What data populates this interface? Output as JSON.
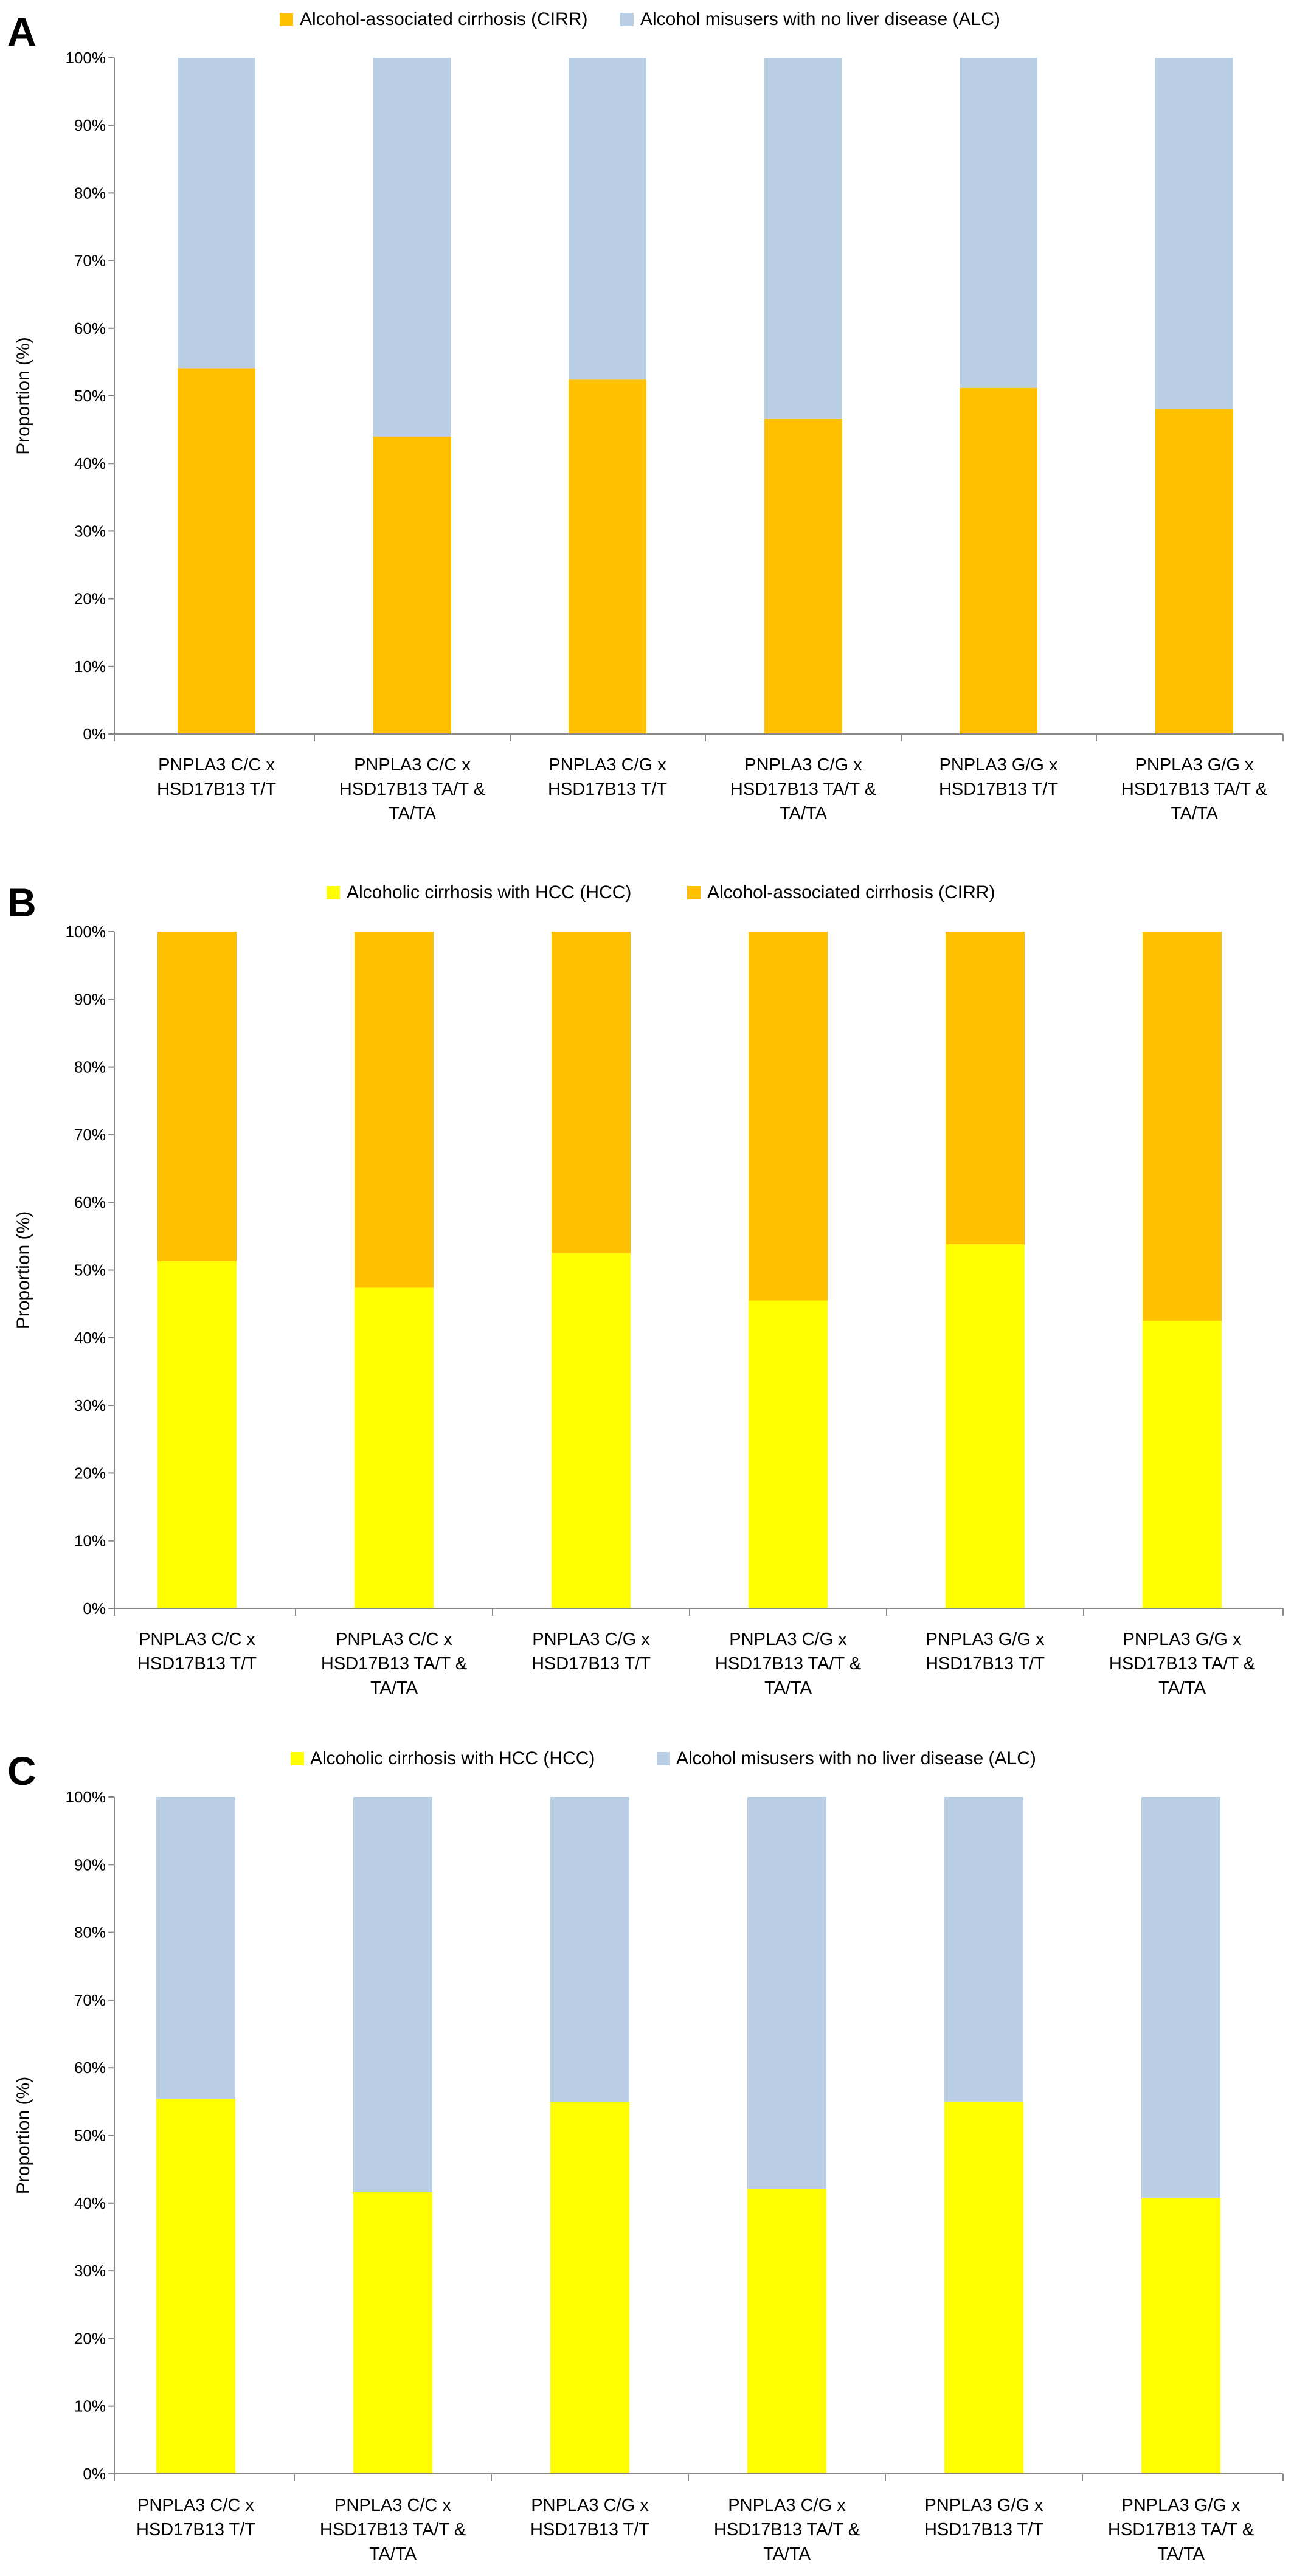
{
  "chart_data": [
    {
      "type": "bar",
      "stacked": true,
      "percent": true,
      "panel_label": "A",
      "ylabel": "Proportion (%)",
      "ylim": [
        0,
        100
      ],
      "yticks": [
        "0%",
        "10%",
        "20%",
        "30%",
        "40%",
        "50%",
        "60%",
        "70%",
        "80%",
        "90%",
        "100%"
      ],
      "legend_position": "top",
      "categories": [
        [
          "PNPLA3 C/C x",
          "HSD17B13 T/T"
        ],
        [
          "PNPLA3 C/C x",
          "HSD17B13 TA/T &",
          "TA/TA"
        ],
        [
          "PNPLA3 C/G x",
          "HSD17B13 T/T"
        ],
        [
          "PNPLA3 C/G x",
          "HSD17B13 TA/T &",
          "TA/TA"
        ],
        [
          "PNPLA3 G/G x",
          "HSD17B13 T/T"
        ],
        [
          "PNPLA3 G/G x",
          "HSD17B13 TA/T &",
          "TA/TA"
        ]
      ],
      "series": [
        {
          "name": "Alcohol-associated cirrhosis (CIRR)",
          "color": "#FFC000",
          "values": [
            54.1,
            44.0,
            52.4,
            46.6,
            51.2,
            48.1
          ]
        },
        {
          "name": "Alcohol misusers with no liver disease (ALC)",
          "color": "#B9CDE5",
          "values": [
            45.9,
            56.0,
            47.6,
            53.4,
            48.8,
            51.9
          ]
        }
      ]
    },
    {
      "type": "bar",
      "stacked": true,
      "percent": true,
      "panel_label": "B",
      "ylabel": "Proportion (%)",
      "ylim": [
        0,
        100
      ],
      "yticks": [
        "0%",
        "10%",
        "20%",
        "30%",
        "40%",
        "50%",
        "60%",
        "70%",
        "80%",
        "90%",
        "100%"
      ],
      "legend_position": "top",
      "categories": [
        [
          "PNPLA3 C/C x",
          "HSD17B13 T/T"
        ],
        [
          "PNPLA3 C/C x",
          "HSD17B13 TA/T &",
          "TA/TA"
        ],
        [
          "PNPLA3 C/G x",
          "HSD17B13 T/T"
        ],
        [
          "PNPLA3 C/G x",
          "HSD17B13 TA/T &",
          "TA/TA"
        ],
        [
          "PNPLA3 G/G x",
          "HSD17B13 T/T"
        ],
        [
          "PNPLA3 G/G x",
          "HSD17B13 TA/T &",
          "TA/TA"
        ]
      ],
      "series": [
        {
          "name": "Alcoholic cirrhosis with HCC (HCC)",
          "color": "#FFFF00",
          "values": [
            51.3,
            47.4,
            52.5,
            45.5,
            53.8,
            42.5
          ]
        },
        {
          "name": "Alcohol-associated cirrhosis (CIRR)",
          "color": "#FFC000",
          "values": [
            48.7,
            52.6,
            47.5,
            54.5,
            46.2,
            57.5
          ]
        }
      ]
    },
    {
      "type": "bar",
      "stacked": true,
      "percent": true,
      "panel_label": "C",
      "ylabel": "Proportion (%)",
      "ylim": [
        0,
        100
      ],
      "yticks": [
        "0%",
        "10%",
        "20%",
        "30%",
        "40%",
        "50%",
        "60%",
        "70%",
        "80%",
        "90%",
        "100%"
      ],
      "legend_position": "top",
      "categories": [
        [
          "PNPLA3 C/C x",
          "HSD17B13 T/T"
        ],
        [
          "PNPLA3 C/C x",
          "HSD17B13 TA/T &",
          "TA/TA"
        ],
        [
          "PNPLA3 C/G x",
          "HSD17B13 T/T"
        ],
        [
          "PNPLA3 C/G x",
          "HSD17B13 TA/T &",
          "TA/TA"
        ],
        [
          "PNPLA3 G/G x",
          "HSD17B13 T/T"
        ],
        [
          "PNPLA3 G/G x",
          "HSD17B13 TA/T &",
          "TA/TA"
        ]
      ],
      "series": [
        {
          "name": "Alcoholic cirrhosis with HCC (HCC)",
          "color": "#FFFF00",
          "values": [
            55.4,
            41.6,
            54.9,
            42.1,
            55.0,
            40.8
          ]
        },
        {
          "name": "Alcohol misusers with no liver disease (ALC)",
          "color": "#B9CDE5",
          "values": [
            44.6,
            58.4,
            45.1,
            57.9,
            45.0,
            59.2
          ]
        }
      ]
    }
  ]
}
